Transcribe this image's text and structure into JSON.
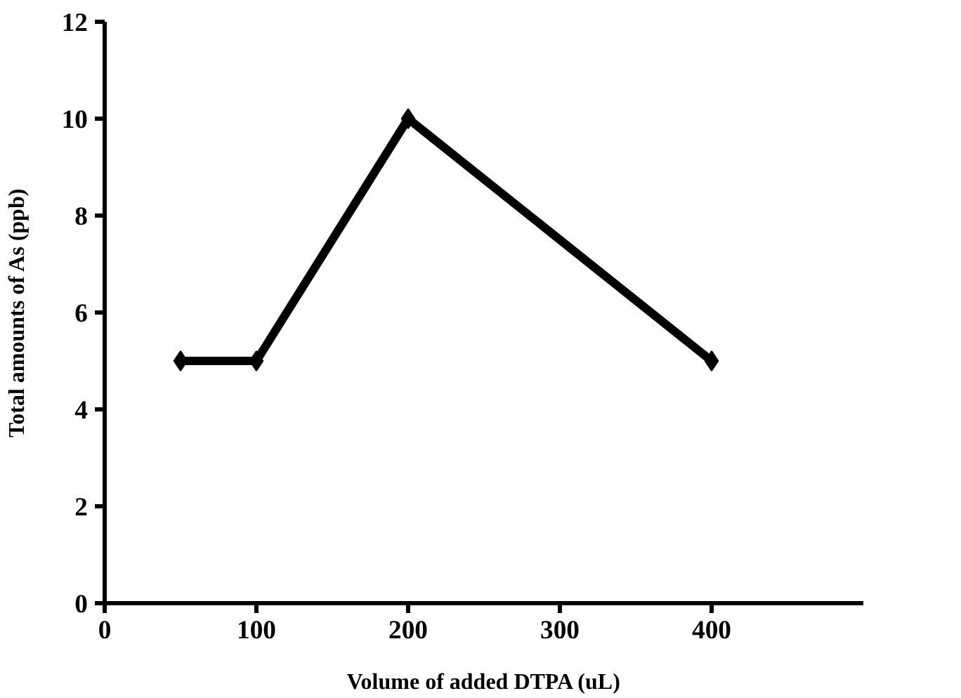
{
  "chart_data": {
    "type": "line",
    "xlabel": "Volume of added DTPA (uL)",
    "ylabel": "Total amounts of As (ppb)",
    "x": [
      50,
      100,
      200,
      400
    ],
    "series": [
      {
        "color": "#000000",
        "values": [
          5,
          5,
          10,
          5
        ]
      }
    ],
    "xlim": [
      0,
      500
    ],
    "xticks": [
      0,
      100,
      200,
      300,
      400
    ],
    "ylim": [
      0,
      12
    ],
    "yticks": [
      0,
      2,
      4,
      6,
      8,
      10,
      12
    ],
    "grid": false,
    "marker": "diamond",
    "line_style": "solid"
  }
}
